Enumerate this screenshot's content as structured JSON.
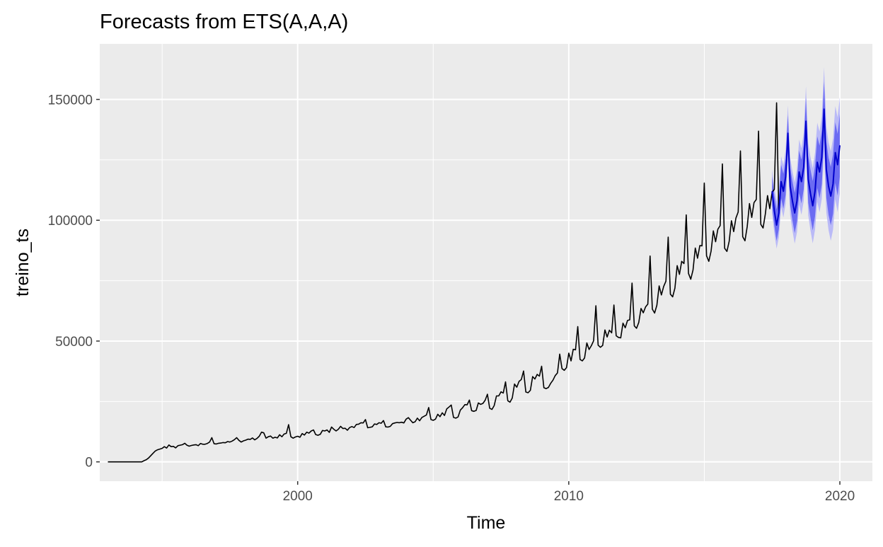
{
  "chart_data": {
    "type": "line",
    "title": "Forecasts from ETS(A,A,A)",
    "xlabel": "Time",
    "ylabel": "treino_ts",
    "xlim": [
      1992.7,
      2021.2
    ],
    "ylim": [
      -8000,
      173000
    ],
    "xticks": [
      2000,
      2010,
      2020
    ],
    "xtick_labels": [
      "2000",
      "2010",
      "2020"
    ],
    "yticks": [
      0,
      50000,
      100000,
      150000
    ],
    "ytick_labels": [
      "0",
      "50000",
      "100000",
      "150000"
    ],
    "grid": true,
    "legend": "none",
    "colors": {
      "panel": "#ebebeb",
      "grid": "#ffffff",
      "history": "#000000",
      "forecast": "#0000cc",
      "pi80": "#6b6bf2",
      "pi95": "#babaf7"
    },
    "history": {
      "start": [
        1993,
        1
      ],
      "frequency": 12,
      "values": [
        0,
        0,
        0,
        0,
        0,
        0,
        0,
        0,
        0,
        0,
        0,
        0,
        0,
        0,
        0,
        0,
        500,
        900,
        1600,
        2600,
        3600,
        4500,
        5000,
        5300,
        5600,
        6300,
        5700,
        7000,
        6300,
        6400,
        5800,
        6700,
        6900,
        7100,
        7700,
        6900,
        6500,
        6800,
        7000,
        7100,
        6700,
        7600,
        7300,
        7300,
        7600,
        8200,
        10000,
        7500,
        7400,
        7700,
        7800,
        8000,
        7900,
        8400,
        8200,
        8600,
        9200,
        10000,
        8900,
        8200,
        8700,
        9000,
        9400,
        9300,
        9900,
        9100,
        9700,
        10600,
        12300,
        12000,
        9800,
        10400,
        10700,
        9800,
        10200,
        9900,
        11200,
        10400,
        11500,
        11800,
        15400,
        10400,
        9800,
        10300,
        10600,
        10200,
        11700,
        11100,
        12300,
        11900,
        12800,
        13200,
        11300,
        11000,
        11400,
        13000,
        12800,
        13200,
        12200,
        14400,
        13500,
        12800,
        13500,
        14700,
        13800,
        13900,
        13100,
        14200,
        14600,
        14200,
        15500,
        15600,
        16200,
        16100,
        17500,
        14100,
        14300,
        14500,
        15700,
        15500,
        16200,
        16000,
        17100,
        14500,
        14400,
        14700,
        15800,
        16100,
        16300,
        16200,
        16400,
        16100,
        17700,
        18300,
        17200,
        16200,
        16600,
        18100,
        17000,
        18400,
        18900,
        19400,
        22500,
        17500,
        17200,
        17700,
        19700,
        18700,
        20300,
        19200,
        21900,
        22700,
        23500,
        18400,
        18100,
        18600,
        21400,
        22400,
        23700,
        23600,
        25600,
        21200,
        20900,
        21300,
        24400,
        23800,
        24200,
        25500,
        28000,
        22200,
        21700,
        23300,
        27300,
        27300,
        29000,
        28500,
        33100,
        25300,
        24700,
        26400,
        32200,
        30900,
        33300,
        34100,
        37600,
        28900,
        28600,
        29600,
        35300,
        34300,
        36200,
        35500,
        39600,
        30700,
        30300,
        30800,
        32500,
        33800,
        35700,
        36800,
        44600,
        38600,
        37900,
        39000,
        45000,
        41800,
        46600,
        46400,
        56000,
        42400,
        41800,
        43000,
        49200,
        46500,
        48100,
        50100,
        64600,
        48300,
        47400,
        48200,
        54600,
        51700,
        54500,
        53400,
        64900,
        52200,
        51500,
        51300,
        57400,
        55500,
        58500,
        58800,
        74000,
        56300,
        55300,
        57700,
        63500,
        61700,
        64100,
        65300,
        85200,
        63200,
        61600,
        64800,
        72800,
        69100,
        72600,
        74800,
        93000,
        69400,
        68300,
        71900,
        81200,
        77600,
        83000,
        82100,
        102200,
        78000,
        75600,
        79400,
        88500,
        84300,
        89500,
        89400,
        115400,
        85300,
        83000,
        87200,
        95600,
        91100,
        96300,
        97800,
        123300,
        88400,
        87100,
        91300,
        99800,
        95300,
        100900,
        103400,
        128700,
        93200,
        91500,
        97400,
        106900,
        101200,
        107300,
        108600,
        136900,
        98300,
        96800,
        102600,
        110200,
        104800,
        111500,
        112800,
        148600,
        102700
      ]
    },
    "forecast": {
      "start": [
        2017,
        7
      ],
      "frequency": 12,
      "values": [
        112000,
        104000,
        98000,
        103000,
        116000,
        112000,
        118000,
        136000,
        114000,
        108000,
        103000,
        108000,
        120000,
        116000,
        122000,
        141000,
        117000,
        111000,
        106000,
        112000,
        124000,
        120000,
        126000,
        146000,
        121000,
        114000,
        110000,
        115000,
        128000,
        123000,
        131000
      ],
      "lo80_offset_start": 6000,
      "lo80_offset_end": 13000,
      "lo95_offset_start": 9000,
      "lo95_offset_end": 20000
    }
  }
}
